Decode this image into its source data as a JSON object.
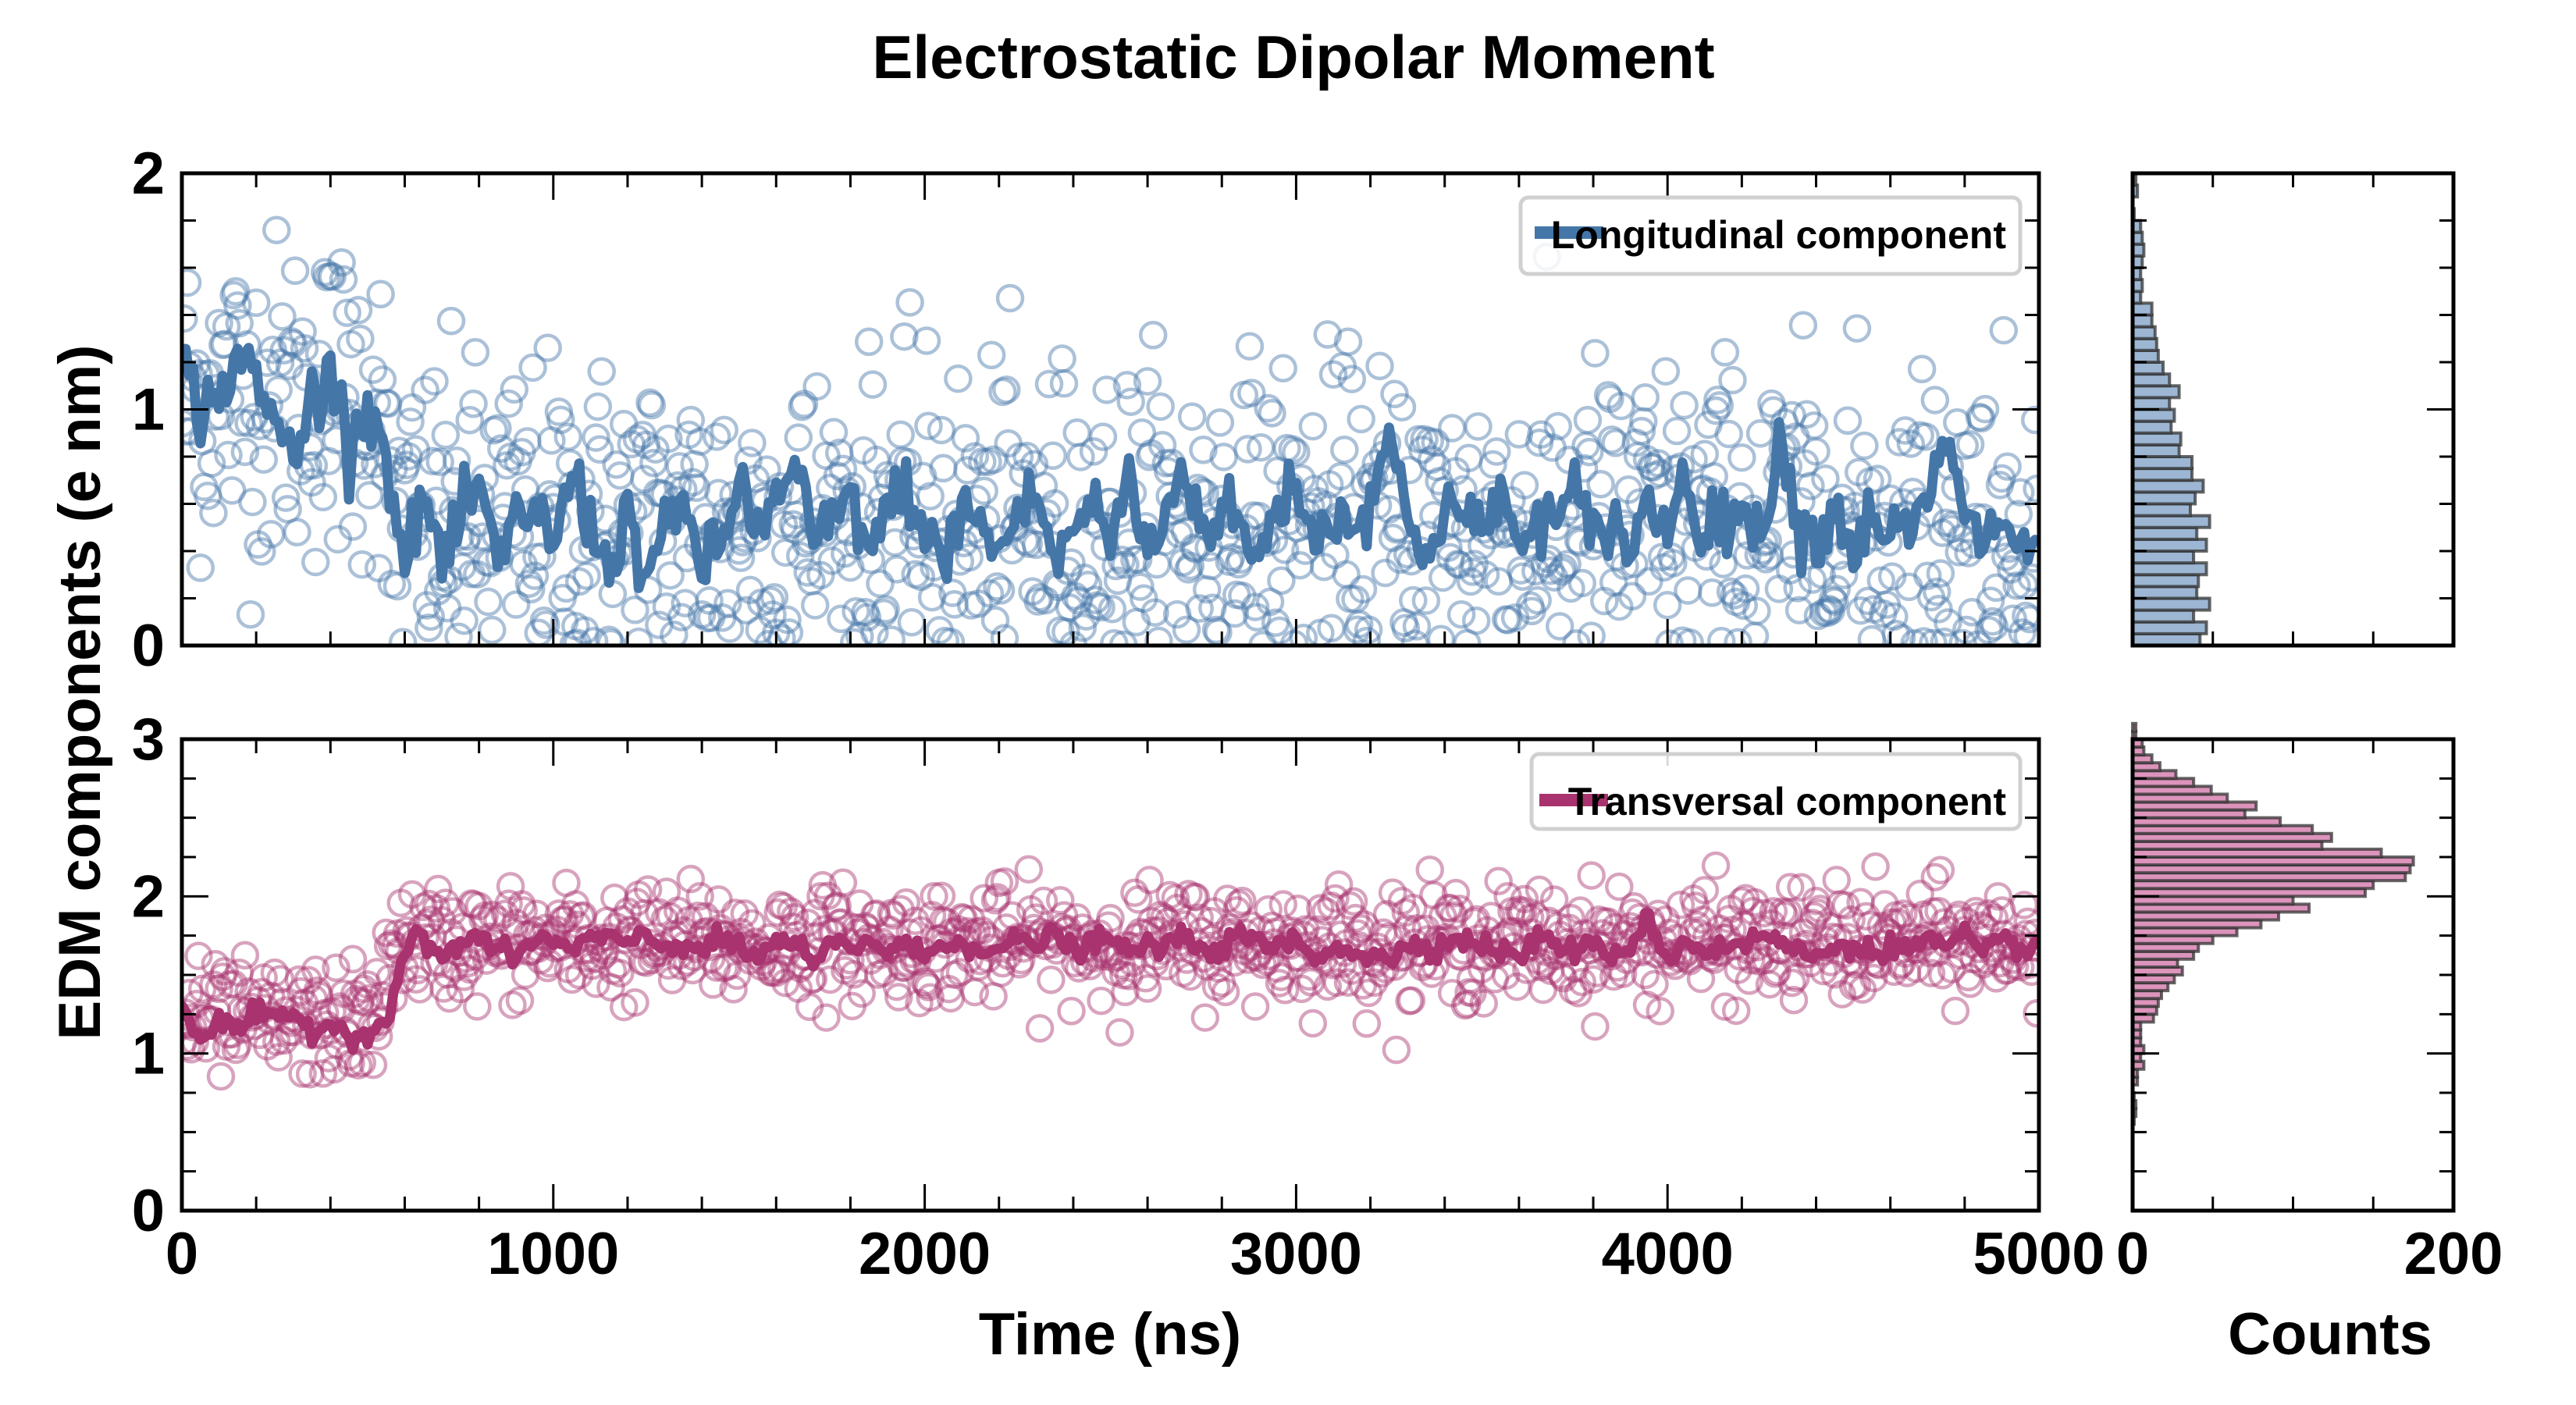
{
  "colors": {
    "longitudinal": "#4576a8",
    "transversal": "#a8336f",
    "long_fill": "#9cb6d3",
    "trans_fill": "#dc94bb",
    "edge": "#333333"
  },
  "chart_data": [
    {
      "type": "line",
      "panel": "top-main",
      "title": "Electrostatic Dipolar Moment",
      "xlabel": "Time (ns)",
      "ylabel": "EDM components (e nm)",
      "xlim": [
        0,
        5000
      ],
      "ylim": [
        0,
        2
      ],
      "xticks": [
        "0",
        "1000",
        "2000",
        "3000",
        "4000",
        "5000"
      ],
      "yticks": [
        "0",
        "1",
        "2"
      ],
      "legend": {
        "label": "Longitudinal component",
        "placement": "top-right"
      },
      "series": [
        {
          "name": "Longitudinal component",
          "kind": "moving-average-line",
          "x_step": 50,
          "values": [
            1.2,
            1.0,
            1.05,
            1.25,
            1.1,
            0.95,
            0.8,
            1.05,
            1.15,
            0.9,
            1.0,
            0.85,
            0.3,
            0.65,
            0.35,
            0.5,
            0.7,
            0.3,
            0.55,
            0.6,
            0.4,
            0.75,
            0.5,
            0.35,
            0.55,
            0.3,
            0.45,
            0.6,
            0.35,
            0.4,
            0.7,
            0.5,
            0.6,
            0.75,
            0.45,
            0.5,
            0.65,
            0.4,
            0.55,
            0.7,
            0.45,
            0.35,
            0.6,
            0.5,
            0.4,
            0.55,
            0.65,
            0.35,
            0.5,
            0.6,
            0.45,
            0.7,
            0.4,
            0.55,
            0.8,
            0.45,
            0.6,
            0.5,
            0.35,
            0.6,
            0.7,
            0.45,
            0.55,
            0.5,
            0.65,
            0.9,
            0.5,
            0.4,
            0.6,
            0.55,
            0.45,
            0.7,
            0.35,
            0.6,
            0.5,
            0.65,
            0.45,
            0.55,
            0.4,
            0.6,
            0.5,
            0.75,
            0.45,
            0.55,
            0.6,
            0.4,
            0.95,
            0.5,
            0.45,
            0.6,
            0.4,
            0.55,
            0.5,
            0.45,
            0.6,
            0.9,
            0.5,
            0.45,
            0.55,
            0.4
          ]
        },
        {
          "name": "Longitudinal raw",
          "kind": "scatter-open-circles",
          "n": 1000,
          "mean_before_550": 1.05,
          "mean_after_550": 0.5,
          "spread": 0.35
        }
      ]
    },
    {
      "type": "line",
      "panel": "bottom-main",
      "xlim": [
        0,
        5000
      ],
      "ylim": [
        0,
        3
      ],
      "xticks": [
        "0",
        "1000",
        "2000",
        "3000",
        "4000",
        "5000"
      ],
      "yticks": [
        "0",
        "1",
        "2",
        "3"
      ],
      "legend": {
        "label": "Transversal component",
        "placement": "top-right"
      },
      "series": [
        {
          "name": "Transversal component",
          "kind": "moving-average-line",
          "x_step": 50,
          "values": [
            1.3,
            1.1,
            1.2,
            1.15,
            1.25,
            1.2,
            1.25,
            1.15,
            1.2,
            1.1,
            1.15,
            1.2,
            1.65,
            1.75,
            1.6,
            1.7,
            1.75,
            1.65,
            1.6,
            1.75,
            1.7,
            1.65,
            1.75,
            1.7,
            1.72,
            1.75,
            1.68,
            1.7,
            1.65,
            1.72,
            1.68,
            1.6,
            1.72,
            1.7,
            1.55,
            1.7,
            1.68,
            1.72,
            1.65,
            1.7,
            1.6,
            1.72,
            1.7,
            1.68,
            1.65,
            1.72,
            1.7,
            1.75,
            1.66,
            1.7,
            1.72,
            1.65,
            1.68,
            1.7,
            1.72,
            1.68,
            1.66,
            1.75,
            1.7,
            1.68,
            1.72,
            1.6,
            1.7,
            1.65,
            1.62,
            1.58,
            1.72,
            1.68,
            1.7,
            1.72,
            1.7,
            1.65,
            1.6,
            1.75,
            1.7,
            1.65,
            1.68,
            1.62,
            1.7,
            1.85,
            1.6,
            1.72,
            1.65,
            1.68,
            1.7,
            1.74,
            1.72,
            1.65,
            1.6,
            1.7,
            1.68,
            1.64,
            1.7,
            1.66,
            1.72,
            1.68,
            1.74,
            1.62,
            1.72,
            1.68
          ]
        },
        {
          "name": "Transversal raw",
          "kind": "scatter-open-circles",
          "n": 1000,
          "mean_before_550": 1.2,
          "mean_after_550": 1.7,
          "spread": 0.2
        }
      ]
    },
    {
      "type": "bar",
      "orientation": "horizontal",
      "panel": "top-histogram",
      "xlabel": "",
      "xlim": [
        0,
        200
      ],
      "ylim": [
        0,
        2
      ],
      "bin_width": 0.05,
      "bin_start": 0,
      "counts": [
        42,
        46,
        38,
        48,
        40,
        41,
        46,
        38,
        46,
        40,
        48,
        36,
        39,
        44,
        37,
        37,
        29,
        30,
        24,
        26,
        23,
        29,
        23,
        19,
        16,
        15,
        14,
        12,
        12,
        5,
        6,
        5,
        6,
        7,
        6,
        5,
        1,
        0,
        3,
        2
      ]
    },
    {
      "type": "bar",
      "orientation": "horizontal",
      "panel": "bottom-histogram",
      "xlabel": "Counts",
      "xlim": [
        0,
        200
      ],
      "xticks": [
        "0",
        "200"
      ],
      "ylim": [
        0,
        3
      ],
      "bin_start": 0.55,
      "bin_width": 0.05,
      "counts": [
        1,
        2,
        2,
        1,
        0,
        3,
        3,
        7,
        5,
        7,
        5,
        5,
        5,
        13,
        15,
        16,
        18,
        22,
        26,
        31,
        28,
        38,
        41,
        50,
        65,
        80,
        91,
        110,
        100,
        145,
        150,
        170,
        173,
        175,
        155,
        118,
        124,
        112,
        92,
        70,
        77,
        59,
        49,
        38,
        27,
        17,
        12,
        7,
        6,
        2,
        2
      ]
    }
  ]
}
